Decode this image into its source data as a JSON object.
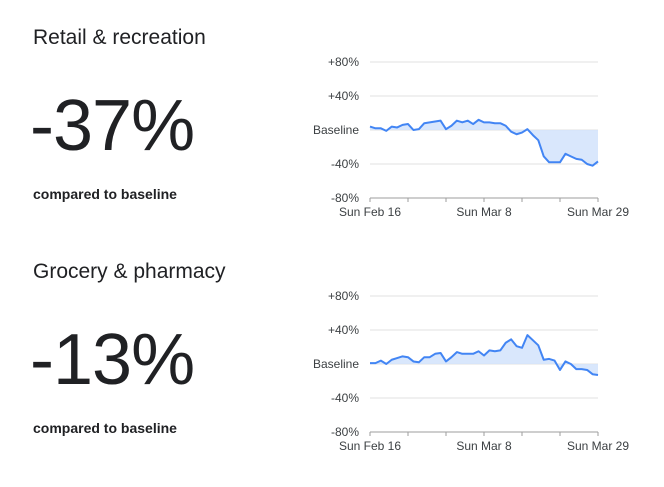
{
  "colors": {
    "line": "#4285f4",
    "fill": "#d2e3fc",
    "text": "#202124"
  },
  "panels": [
    {
      "title": "Retail & recreation",
      "value": "-37%",
      "compare_label": "compared to baseline"
    },
    {
      "title": "Grocery & pharmacy",
      "value": "-13%",
      "compare_label": "compared to baseline"
    }
  ],
  "chart_data": [
    {
      "type": "area",
      "title": "Retail & recreation",
      "y_tick_labels": [
        "+80%",
        "+40%",
        "Baseline",
        "-40%",
        "-80%"
      ],
      "y_tick_values": [
        80,
        40,
        0,
        -40,
        -80
      ],
      "x_tick_labels": [
        "Sun Feb 16",
        "Sun Mar 8",
        "Sun Mar 29"
      ],
      "x_tick_indices": [
        0,
        21,
        42
      ],
      "ylim": [
        -80,
        80
      ],
      "grid": true,
      "x_start": "2020-02-16",
      "x_end": "2020-03-29",
      "values": [
        4,
        2,
        2,
        -1,
        4,
        3,
        6,
        7,
        0,
        1,
        8,
        9,
        10,
        11,
        1,
        5,
        11,
        9,
        11,
        7,
        12,
        9,
        9,
        8,
        8,
        5,
        -2,
        -5,
        -3,
        1,
        -6,
        -12,
        -31,
        -38,
        -38,
        -38,
        -28,
        -31,
        -34,
        -35,
        -40,
        -42,
        -37
      ]
    },
    {
      "type": "area",
      "title": "Grocery & pharmacy",
      "y_tick_labels": [
        "+80%",
        "+40%",
        "Baseline",
        "-40%",
        "-80%"
      ],
      "y_tick_values": [
        80,
        40,
        0,
        -40,
        -80
      ],
      "x_tick_labels": [
        "Sun Feb 16",
        "Sun Mar 8",
        "Sun Mar 29"
      ],
      "x_tick_indices": [
        0,
        21,
        42
      ],
      "ylim": [
        -80,
        80
      ],
      "grid": true,
      "x_start": "2020-02-16",
      "x_end": "2020-03-29",
      "values": [
        1,
        1,
        4,
        0,
        5,
        7,
        9,
        8,
        3,
        2,
        8,
        8,
        12,
        13,
        3,
        8,
        14,
        12,
        12,
        12,
        15,
        10,
        16,
        15,
        16,
        25,
        29,
        21,
        19,
        34,
        28,
        22,
        5,
        6,
        4,
        -7,
        3,
        0,
        -6,
        -6,
        -7,
        -12,
        -13
      ]
    }
  ]
}
